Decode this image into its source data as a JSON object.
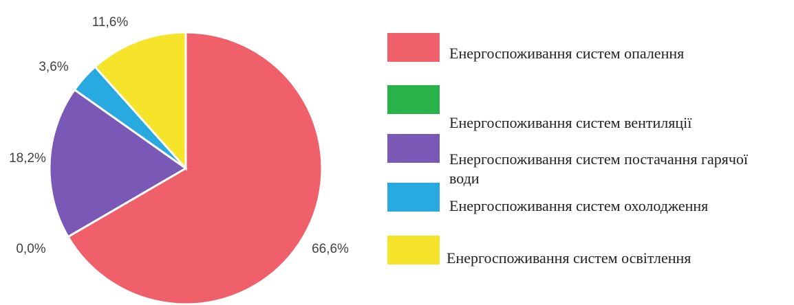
{
  "chart_data": {
    "type": "pie",
    "categories": [
      "Енергоспоживання систем опалення",
      "Енергоспоживання систем вентиляції",
      "Енергоспоживання систем постачання гарячої води",
      "Енергоспоживання систем охолодження",
      "Енергоспоживання систем освітлення"
    ],
    "values": [
      66.6,
      0.0,
      18.2,
      3.6,
      11.6
    ],
    "data_labels": [
      "66,6%",
      "0,0%",
      "18,2%",
      "3,6%",
      "11,6%"
    ],
    "colors": [
      "#f0606a",
      "#29b24a",
      "#7a58b5",
      "#28a9e0",
      "#f6e42a"
    ],
    "title": "",
    "legend_position": "right"
  }
}
